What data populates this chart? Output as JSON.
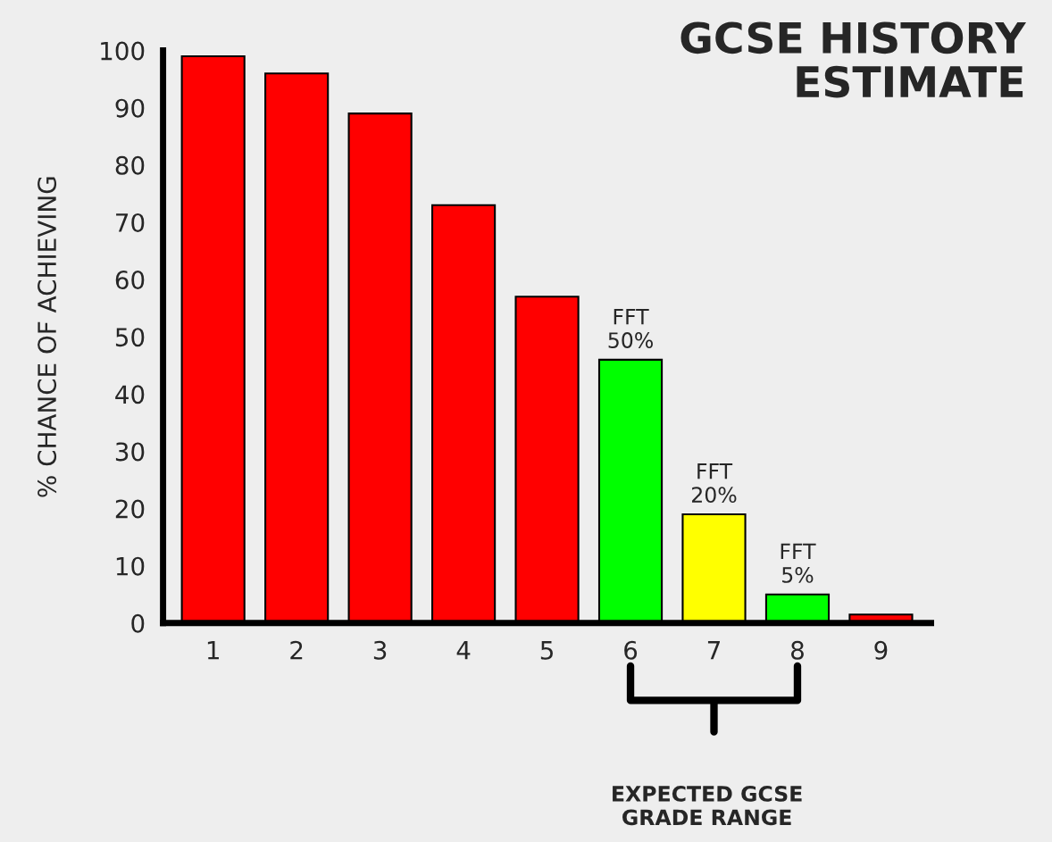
{
  "chart_data": {
    "type": "bar",
    "title": "GCSE HISTORY\nESTIMATE",
    "ylabel": "% CHANCE OF ACHIEVING",
    "categories": [
      "1",
      "2",
      "3",
      "4",
      "5",
      "6",
      "7",
      "8",
      "9"
    ],
    "values": [
      99,
      96,
      89,
      73,
      57,
      46,
      19,
      5,
      1.5
    ],
    "colors": [
      "#ff0000",
      "#ff0000",
      "#ff0000",
      "#ff0000",
      "#ff0000",
      "#00ff00",
      "#ffff00",
      "#00ff00",
      "#ff0000"
    ],
    "ylim": [
      0,
      100
    ],
    "yticks": [
      0,
      10,
      20,
      30,
      40,
      50,
      60,
      70,
      80,
      90,
      100
    ],
    "grid": false,
    "annotations": [
      {
        "text": "FFT\n50%",
        "x": "6",
        "y": 46
      },
      {
        "text": "FFT\n20%",
        "x": "7",
        "y": 19
      },
      {
        "text": "FFT\n5%",
        "x": "8",
        "y": 5
      },
      "EXPECTED GCSE\nGRADE RANGE"
    ]
  }
}
